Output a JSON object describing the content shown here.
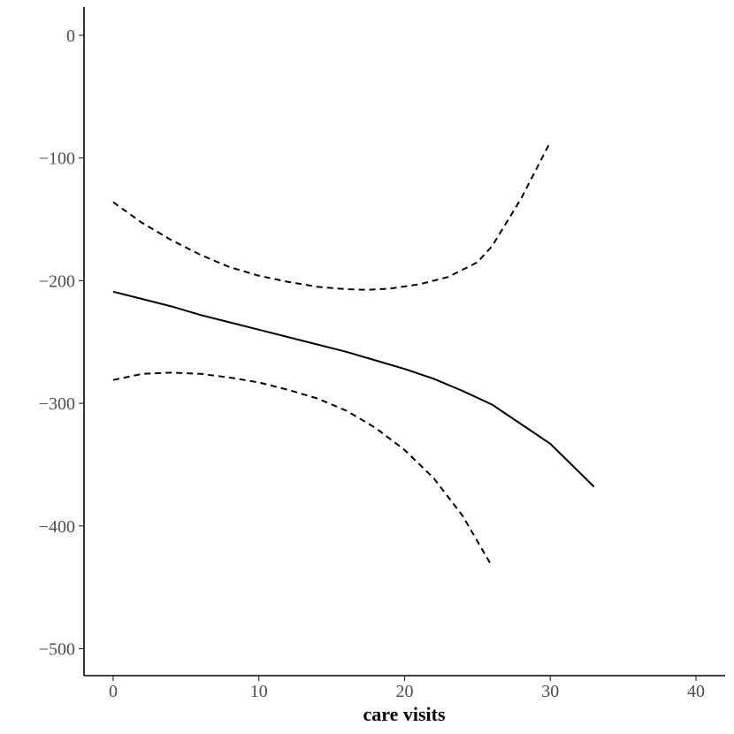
{
  "chart_data": {
    "type": "line",
    "title": "",
    "xlabel": "care visits",
    "ylabel": "",
    "xlim": [
      -2,
      42
    ],
    "ylim": [
      -522,
      23
    ],
    "x_ticks": [
      0,
      10,
      20,
      30,
      40
    ],
    "y_ticks": [
      0,
      -100,
      -200,
      -300,
      -400,
      -500
    ],
    "x_tick_labels": [
      "0",
      "10",
      "20",
      "30",
      "40"
    ],
    "y_tick_labels": [
      "0",
      "−100",
      "−200",
      "−300",
      "−400",
      "−500"
    ],
    "grid": false,
    "legend": "none",
    "series": [
      {
        "style": "solid",
        "color": "#000000",
        "x": [
          0,
          2,
          4,
          6,
          8,
          10,
          12,
          14,
          16,
          18,
          20,
          22,
          24,
          26,
          28,
          30,
          33
        ],
        "y": [
          -209,
          -215,
          -221,
          -228,
          -234,
          -240,
          -246,
          -252,
          -258,
          -265,
          -272,
          -280,
          -290,
          -301,
          -317,
          -333,
          -368
        ]
      },
      {
        "style": "dashed",
        "color": "#000000",
        "x": [
          0,
          2,
          4,
          6,
          8,
          10,
          12,
          14,
          16,
          17.5,
          19,
          21,
          23,
          25,
          26,
          28,
          30
        ],
        "y": [
          -136,
          -153,
          -167,
          -179,
          -189,
          -196,
          -201,
          -205,
          -207,
          -207.5,
          -206.5,
          -203,
          -197,
          -185,
          -172,
          -133,
          -87
        ]
      },
      {
        "style": "dashed",
        "color": "#000000",
        "x": [
          0,
          2,
          4,
          6,
          8,
          10,
          12,
          14,
          16,
          18,
          20,
          22,
          24,
          26
        ],
        "y": [
          -281,
          -276,
          -275,
          -276,
          -279,
          -283,
          -289,
          -296,
          -306,
          -320,
          -338,
          -361,
          -392,
          -433
        ]
      }
    ]
  }
}
